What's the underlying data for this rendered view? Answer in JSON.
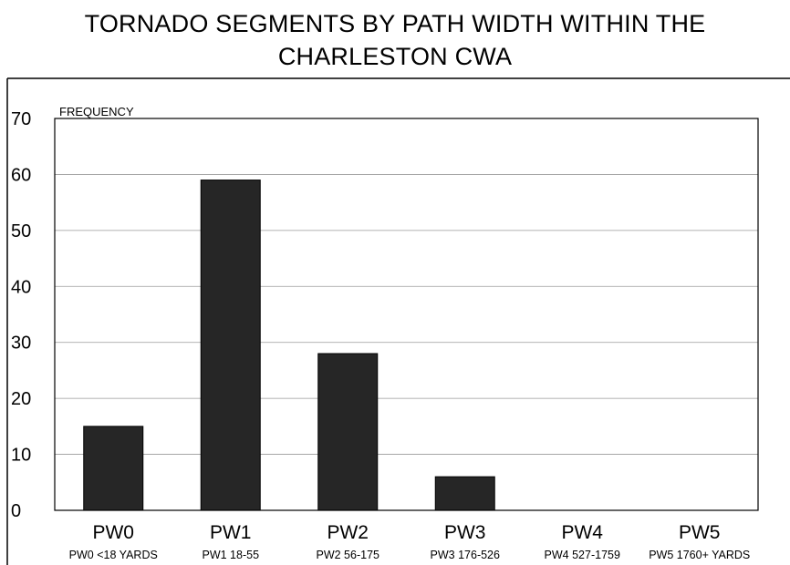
{
  "chart_data": {
    "type": "bar",
    "title": "TORNADO SEGMENTS BY PATH WIDTH WITHIN THE CHARLESTON CWA",
    "title_lines": [
      "TORNADO SEGMENTS BY PATH WIDTH WITHIN THE",
      "CHARLESTON CWA"
    ],
    "ylabel": "FREQUENCY",
    "xlabel": "",
    "categories": [
      "PW0",
      "PW1",
      "PW2",
      "PW3",
      "PW4",
      "PW5"
    ],
    "category_descriptions": [
      "PW0  <18 YARDS",
      "PW1  18-55",
      "PW2  56-175",
      "PW3  176-526",
      "PW4  527-1759",
      "PW5 1760+ YARDS"
    ],
    "values": [
      15,
      59,
      28,
      6,
      0,
      0
    ],
    "ylim": [
      0,
      70
    ],
    "yticks": [
      0,
      10,
      20,
      30,
      40,
      50,
      60,
      70
    ],
    "grid": true,
    "bar_color": "#262626"
  }
}
